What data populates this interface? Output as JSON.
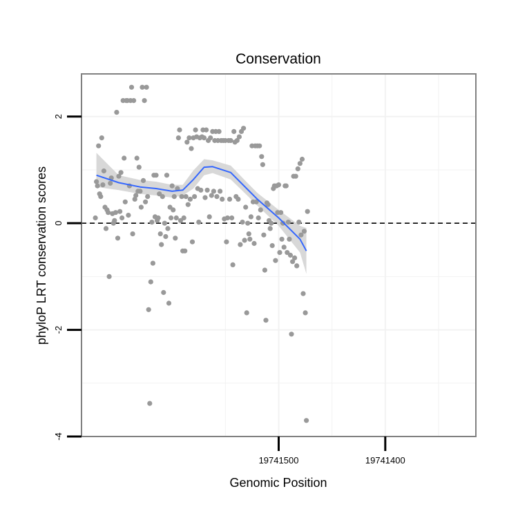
{
  "chart_data": {
    "type": "scatter",
    "title": "Conservation",
    "xlabel": "Genomic Position",
    "ylabel": "phyloP LRT conservation scores",
    "xlim": [
      19741685,
      19741315
    ],
    "ylim": [
      -4,
      2.8
    ],
    "x_reversed": true,
    "x_ticks": [
      19741500,
      19741400
    ],
    "x_tick_labels": [
      "19741500",
      "19741400"
    ],
    "y_ticks": [
      -4,
      -2,
      0,
      2
    ],
    "y_tick_labels": [
      "-4",
      "-2",
      "0",
      "2"
    ],
    "grid": true,
    "reference_line": {
      "y": 0,
      "style": "dashed"
    },
    "colors": {
      "points": "#999999",
      "smooth_line": "#3366ff",
      "ribbon": "#d4d4d4",
      "grid": "#f2f2f2",
      "panel_border": "#808080"
    },
    "series": [
      {
        "kind": "points",
        "points": [
          [
            19741672,
            0.1
          ],
          [
            19741671,
            0.78
          ],
          [
            19741670,
            0.7
          ],
          [
            19741669,
            1.45
          ],
          [
            19741668,
            0.55
          ],
          [
            19741667,
            0.5
          ],
          [
            19741666,
            1.6
          ],
          [
            19741665,
            0.72
          ],
          [
            19741664,
            0.98
          ],
          [
            19741663,
            0.3
          ],
          [
            19741662,
            -0.1
          ],
          [
            19741661,
            0.25
          ],
          [
            19741660,
            0.2
          ],
          [
            19741659,
            -1.0
          ],
          [
            19741658,
            0.75
          ],
          [
            19741657,
            0.85
          ],
          [
            19741656,
            0.18
          ],
          [
            19741655,
            0.0
          ],
          [
            19741654,
            0.05
          ],
          [
            19741653,
            0.2
          ],
          [
            19741652,
            2.08
          ],
          [
            19741651,
            -0.28
          ],
          [
            19741650,
            0.88
          ],
          [
            19741649,
            0.22
          ],
          [
            19741648,
            0.95
          ],
          [
            19741647,
            0.1
          ],
          [
            19741646,
            2.3
          ],
          [
            19741645,
            1.22
          ],
          [
            19741644,
            0.4
          ],
          [
            19741643,
            2.3
          ],
          [
            19741642,
            2.3
          ],
          [
            19741641,
            0.15
          ],
          [
            19741640,
            0.7
          ],
          [
            19741639,
            2.3
          ],
          [
            19741638,
            2.55
          ],
          [
            19741637,
            -0.2
          ],
          [
            19741636,
            2.3
          ],
          [
            19741635,
            0.45
          ],
          [
            19741634,
            0.52
          ],
          [
            19741633,
            1.22
          ],
          [
            19741632,
            0.6
          ],
          [
            19741631,
            1.05
          ],
          [
            19741630,
            0.6
          ],
          [
            19741629,
            0.3
          ],
          [
            19741628,
            2.55
          ],
          [
            19741627,
            0.8
          ],
          [
            19741626,
            2.3
          ],
          [
            19741625,
            0.4
          ],
          [
            19741624,
            2.55
          ],
          [
            19741623,
            0.5
          ],
          [
            19741622,
            -1.62
          ],
          [
            19741621,
            -3.38
          ],
          [
            19741620,
            -1.1
          ],
          [
            19741619,
            0.02
          ],
          [
            19741618,
            -0.75
          ],
          [
            19741617,
            0.9
          ],
          [
            19741616,
            0.12
          ],
          [
            19741615,
            0.9
          ],
          [
            19741614,
            0.05
          ],
          [
            19741613,
            0.1
          ],
          [
            19741612,
            0.55
          ],
          [
            19741611,
            -0.2
          ],
          [
            19741610,
            -0.4
          ],
          [
            19741609,
            0.5
          ],
          [
            19741608,
            -1.3
          ],
          [
            19741607,
            0.0
          ],
          [
            19741606,
            -0.25
          ],
          [
            19741605,
            0.9
          ],
          [
            19741604,
            -0.1
          ],
          [
            19741603,
            -1.5
          ],
          [
            19741602,
            0.3
          ],
          [
            19741601,
            0.1
          ],
          [
            19741600,
            0.7
          ],
          [
            19741599,
            0.25
          ],
          [
            19741598,
            0.5
          ],
          [
            19741597,
            -0.28
          ],
          [
            19741596,
            0.1
          ],
          [
            19741595,
            0.65
          ],
          [
            19741594,
            1.6
          ],
          [
            19741593,
            1.75
          ],
          [
            19741592,
            0.05
          ],
          [
            19741591,
            0.5
          ],
          [
            19741590,
            -0.52
          ],
          [
            19741589,
            0.1
          ],
          [
            19741588,
            -0.52
          ],
          [
            19741587,
            0.5
          ],
          [
            19741586,
            1.52
          ],
          [
            19741585,
            0.35
          ],
          [
            19741584,
            1.6
          ],
          [
            19741583,
            0.45
          ],
          [
            19741582,
            1.4
          ],
          [
            19741581,
            -0.35
          ],
          [
            19741580,
            1.6
          ],
          [
            19741579,
            0.5
          ],
          [
            19741578,
            1.75
          ],
          [
            19741577,
            1.62
          ],
          [
            19741576,
            0.65
          ],
          [
            19741575,
            0.02
          ],
          [
            19741574,
            1.6
          ],
          [
            19741573,
            0.62
          ],
          [
            19741572,
            1.62
          ],
          [
            19741571,
            1.75
          ],
          [
            19741570,
            1.6
          ],
          [
            19741569,
            0.48
          ],
          [
            19741568,
            1.75
          ],
          [
            19741567,
            0.62
          ],
          [
            19741566,
            1.55
          ],
          [
            19741565,
            0.12
          ],
          [
            19741564,
            1.6
          ],
          [
            19741563,
            0.52
          ],
          [
            19741562,
            1.72
          ],
          [
            19741561,
            0.6
          ],
          [
            19741560,
            1.55
          ],
          [
            19741559,
            1.72
          ],
          [
            19741558,
            0.5
          ],
          [
            19741557,
            1.55
          ],
          [
            19741556,
            1.72
          ],
          [
            19741555,
            0.6
          ],
          [
            19741554,
            1.55
          ],
          [
            19741553,
            0.45
          ],
          [
            19741552,
            1.55
          ],
          [
            19741551,
            0.08
          ],
          [
            19741550,
            1.55
          ],
          [
            19741549,
            -0.35
          ],
          [
            19741548,
            0.1
          ],
          [
            19741547,
            1.55
          ],
          [
            19741546,
            0.45
          ],
          [
            19741545,
            1.55
          ],
          [
            19741544,
            0.1
          ],
          [
            19741543,
            -0.78
          ],
          [
            19741542,
            1.72
          ],
          [
            19741541,
            1.52
          ],
          [
            19741540,
            0.5
          ],
          [
            19741539,
            1.55
          ],
          [
            19741538,
            0.45
          ],
          [
            19741537,
            1.62
          ],
          [
            19741536,
            -0.4
          ],
          [
            19741535,
            1.72
          ],
          [
            19741534,
            0.02
          ],
          [
            19741533,
            1.78
          ],
          [
            19741532,
            -0.32
          ],
          [
            19741531,
            0.3
          ],
          [
            19741530,
            -1.68
          ],
          [
            19741529,
            0.0
          ],
          [
            19741528,
            -0.2
          ],
          [
            19741527,
            -0.3
          ],
          [
            19741526,
            0.12
          ],
          [
            19741525,
            1.45
          ],
          [
            19741524,
            0.4
          ],
          [
            19741523,
            -0.38
          ],
          [
            19741522,
            1.45
          ],
          [
            19741521,
            0.4
          ],
          [
            19741520,
            1.45
          ],
          [
            19741519,
            0.1
          ],
          [
            19741518,
            1.45
          ],
          [
            19741517,
            0.25
          ],
          [
            19741516,
            1.25
          ],
          [
            19741515,
            1.1
          ],
          [
            19741514,
            -0.22
          ],
          [
            19741513,
            -0.88
          ],
          [
            19741512,
            -1.82
          ],
          [
            19741511,
            0.38
          ],
          [
            19741510,
            0.35
          ],
          [
            19741509,
            0.05
          ],
          [
            19741508,
            -0.1
          ],
          [
            19741507,
            0.0
          ],
          [
            19741506,
            -0.42
          ],
          [
            19741505,
            0.65
          ],
          [
            19741504,
            0.7
          ],
          [
            19741503,
            -0.7
          ],
          [
            19741502,
            0.7
          ],
          [
            19741501,
            0.2
          ],
          [
            19741500,
            0.72
          ],
          [
            19741499,
            -0.55
          ],
          [
            19741498,
            0.2
          ],
          [
            19741497,
            -0.3
          ],
          [
            19741496,
            0.0
          ],
          [
            19741495,
            -0.45
          ],
          [
            19741494,
            0.7
          ],
          [
            19741493,
            0.7
          ],
          [
            19741492,
            -0.55
          ],
          [
            19741491,
            0.02
          ],
          [
            19741490,
            -0.3
          ],
          [
            19741489,
            -0.6
          ],
          [
            19741488,
            -2.08
          ],
          [
            19741487,
            -0.72
          ],
          [
            19741486,
            0.88
          ],
          [
            19741485,
            -0.65
          ],
          [
            19741484,
            0.88
          ],
          [
            19741483,
            -0.8
          ],
          [
            19741482,
            1.02
          ],
          [
            19741481,
            0.02
          ],
          [
            19741480,
            1.12
          ],
          [
            19741479,
            -0.22
          ],
          [
            19741478,
            1.2
          ],
          [
            19741477,
            -1.32
          ],
          [
            19741476,
            -0.15
          ],
          [
            19741475,
            -1.68
          ],
          [
            19741474,
            -3.7
          ],
          [
            19741473,
            0.22
          ]
        ]
      },
      {
        "kind": "loess",
        "x": [
          19741671,
          19741650,
          19741630,
          19741615,
          19741600,
          19741590,
          19741580,
          19741570,
          19741562,
          19741545,
          19741530,
          19741520,
          19741500,
          19741480,
          19741474
        ],
        "y": [
          0.9,
          0.76,
          0.68,
          0.65,
          0.6,
          0.62,
          0.82,
          1.05,
          1.06,
          0.95,
          0.65,
          0.45,
          0.1,
          -0.3,
          -0.52
        ],
        "lower": [
          0.68,
          0.62,
          0.55,
          0.52,
          0.48,
          0.52,
          0.65,
          0.9,
          0.94,
          0.82,
          0.53,
          0.33,
          -0.05,
          -0.55,
          -0.95
        ],
        "upper": [
          1.32,
          0.9,
          0.81,
          0.78,
          0.72,
          0.72,
          0.99,
          1.2,
          1.18,
          1.08,
          0.77,
          0.57,
          0.25,
          -0.05,
          -0.09
        ]
      }
    ]
  }
}
